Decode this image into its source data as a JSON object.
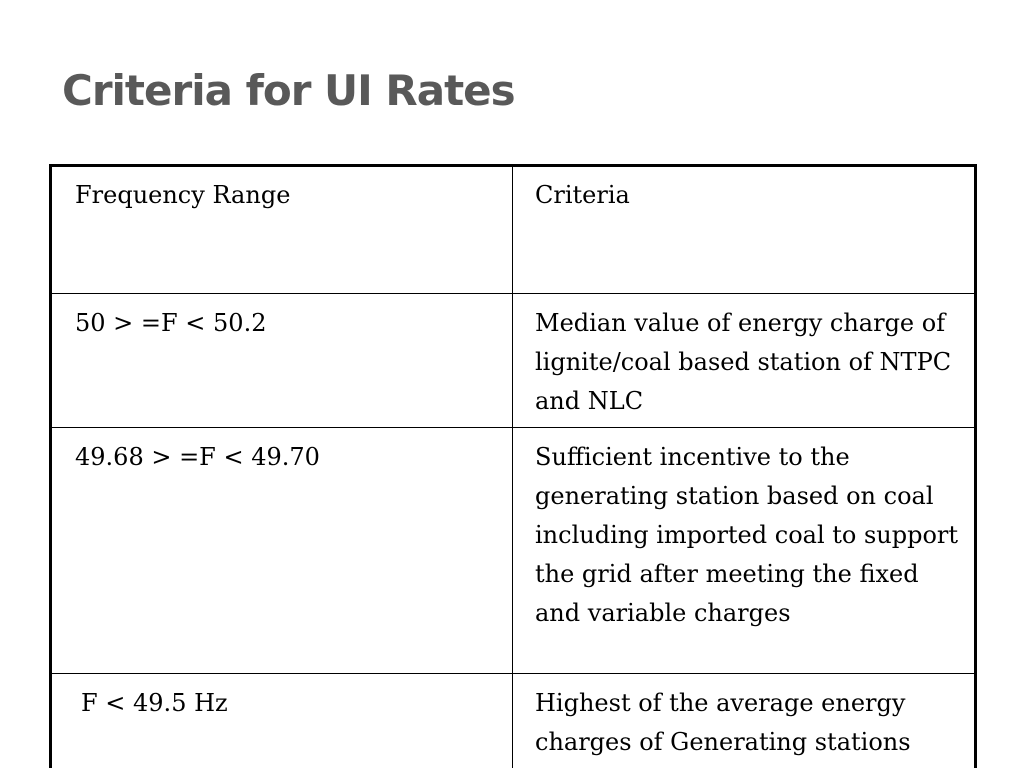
{
  "slide": {
    "title": "Criteria for UI Rates"
  },
  "table": {
    "headers": {
      "frequency": "Frequency Range",
      "criteria": "Criteria"
    },
    "rows": [
      {
        "frequency": "50 > =F < 50.2",
        "criteria": "Median value of energy charge of lignite/coal based station of NTPC and NLC"
      },
      {
        "frequency": "49.68 > =F < 49.70",
        "criteria": "Sufficient incentive to the generating station based on coal including imported coal to support the grid after meeting the fixed and variable charges"
      },
      {
        "frequency": "F < 49.5 Hz",
        "criteria": "Highest of the average energy charges of Generating stations"
      }
    ]
  }
}
